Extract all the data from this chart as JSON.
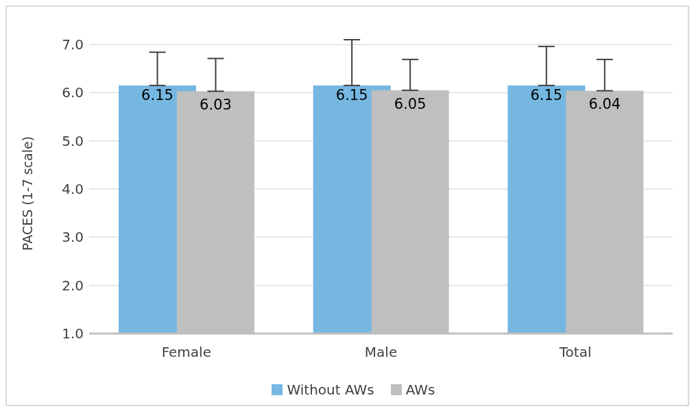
{
  "chart_data": {
    "type": "bar",
    "ylabel": "PACES (1-7 scale)",
    "categories": [
      "Female",
      "Male",
      "Total"
    ],
    "series": [
      {
        "name": "Without AWs",
        "color": "#75b7e1",
        "values": [
          6.15,
          6.15,
          6.15
        ],
        "errors": [
          [
            6.15,
            6.84
          ],
          [
            6.15,
            7.1
          ],
          [
            6.15,
            6.96
          ]
        ]
      },
      {
        "name": "AWs",
        "color": "#bfbfbf",
        "values": [
          6.03,
          6.05,
          6.04
        ],
        "errors": [
          [
            6.03,
            6.71
          ],
          [
            6.05,
            6.69
          ],
          [
            6.04,
            6.69
          ]
        ]
      }
    ],
    "ylim": [
      1,
      7
    ],
    "yticks": [
      {
        "value": 1,
        "label": "1.0"
      },
      {
        "value": 2,
        "label": "2.0"
      },
      {
        "value": 3,
        "label": "3.0"
      },
      {
        "value": 4,
        "label": "4.0"
      },
      {
        "value": 5,
        "label": "5.0"
      },
      {
        "value": 6,
        "label": "6.0"
      },
      {
        "value": 7,
        "label": "7.0"
      }
    ],
    "grid": "y",
    "legend": "bottom",
    "data_labels": true
  }
}
